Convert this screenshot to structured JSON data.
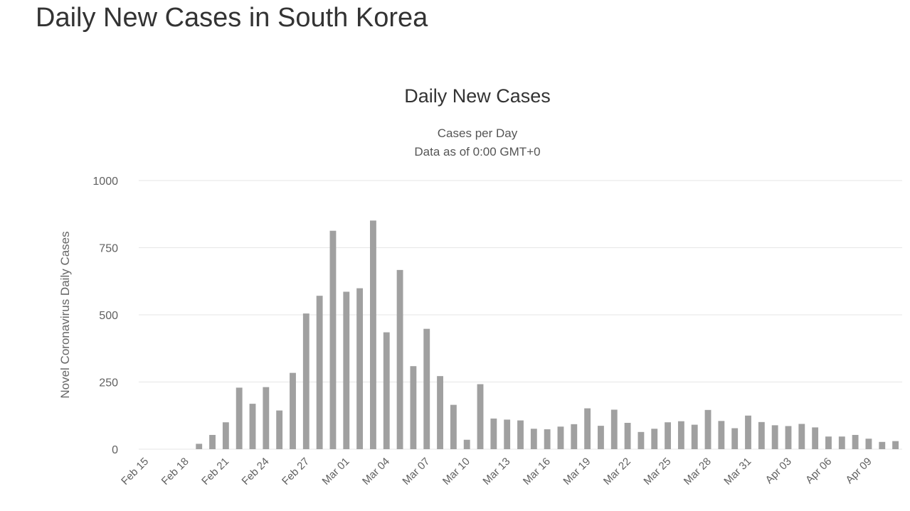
{
  "page": {
    "heading": "Daily New Cases in South Korea"
  },
  "chart_data": {
    "type": "bar",
    "title": "Daily New Cases",
    "subtitle_lines": [
      "Cases per Day",
      "Data as of 0:00 GMT+0"
    ],
    "ylabel": "Novel Coronavirus Daily Cases",
    "xlabel": "",
    "ylim": [
      0,
      1000
    ],
    "yticks": [
      0,
      250,
      500,
      750,
      1000
    ],
    "grid": true,
    "legend": "none",
    "bar_color": "#a0a0a0",
    "grid_color": "#e6e6e6",
    "categories": [
      "Feb 15",
      "Feb 16",
      "Feb 17",
      "Feb 18",
      "Feb 19",
      "Feb 20",
      "Feb 21",
      "Feb 22",
      "Feb 23",
      "Feb 24",
      "Feb 25",
      "Feb 26",
      "Feb 27",
      "Feb 28",
      "Feb 29",
      "Mar 01",
      "Mar 02",
      "Mar 03",
      "Mar 04",
      "Mar 05",
      "Mar 06",
      "Mar 07",
      "Mar 08",
      "Mar 09",
      "Mar 10",
      "Mar 11",
      "Mar 12",
      "Mar 13",
      "Mar 14",
      "Mar 15",
      "Mar 16",
      "Mar 17",
      "Mar 18",
      "Mar 19",
      "Mar 20",
      "Mar 21",
      "Mar 22",
      "Mar 23",
      "Mar 24",
      "Mar 25",
      "Mar 26",
      "Mar 27",
      "Mar 28",
      "Mar 29",
      "Mar 30",
      "Mar 31",
      "Apr 01",
      "Apr 02",
      "Apr 03",
      "Apr 04",
      "Apr 05",
      "Apr 06",
      "Apr 07",
      "Apr 08",
      "Apr 09",
      "Apr 10",
      "Apr 11"
    ],
    "x_tick_labels": [
      "Feb 15",
      "Feb 18",
      "Feb 21",
      "Feb 24",
      "Feb 27",
      "Mar 01",
      "Mar 04",
      "Mar 07",
      "Mar 10",
      "Mar 13",
      "Mar 16",
      "Mar 19",
      "Mar 22",
      "Mar 25",
      "Mar 28",
      "Mar 31",
      "Apr 03",
      "Apr 06",
      "Apr 09"
    ],
    "series": [
      {
        "values": [
          0,
          0,
          0,
          0,
          20,
          53,
          100,
          229,
          169,
          231,
          144,
          284,
          505,
          571,
          813,
          586,
          599,
          851,
          435,
          667,
          309,
          448,
          272,
          165,
          35,
          242,
          114,
          110,
          107,
          76,
          74,
          84,
          93,
          152,
          87,
          147,
          98,
          64,
          76,
          100,
          104,
          91,
          146,
          105,
          78,
          125,
          101,
          89,
          86,
          94,
          81,
          47,
          47,
          53,
          39,
          27,
          30
        ]
      }
    ]
  }
}
